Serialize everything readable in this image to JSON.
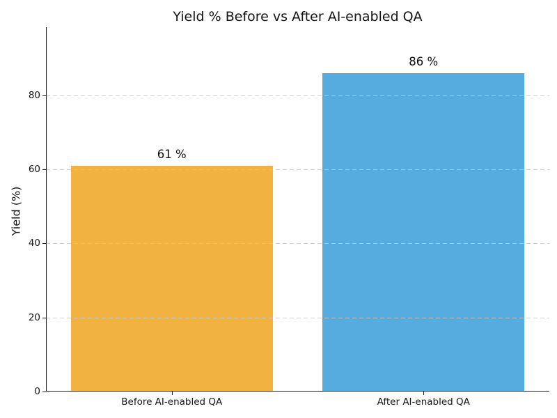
{
  "chart_data": {
    "type": "bar",
    "title": "Yield % Before vs After AI-enabled QA",
    "categories": [
      "Before AI-enabled QA",
      "After AI-enabled QA"
    ],
    "values": [
      61,
      86
    ],
    "value_labels": [
      "61 %",
      "86 %"
    ],
    "bar_colors": [
      "#f2b240",
      "#57acdf"
    ],
    "xlabel": "",
    "ylabel": "Yield (%)",
    "yticks": [
      0,
      20,
      40,
      60,
      80
    ],
    "ytick_labels": [
      "0",
      "20",
      "40",
      "60",
      "80"
    ],
    "ylim": [
      0,
      98.4
    ],
    "grid": {
      "axis": "y",
      "style": "dashed",
      "color": "#c8c8c8",
      "drawn_above_bars": true
    },
    "legend": "none",
    "background": "#ffffff",
    "text_color": "#151515"
  }
}
